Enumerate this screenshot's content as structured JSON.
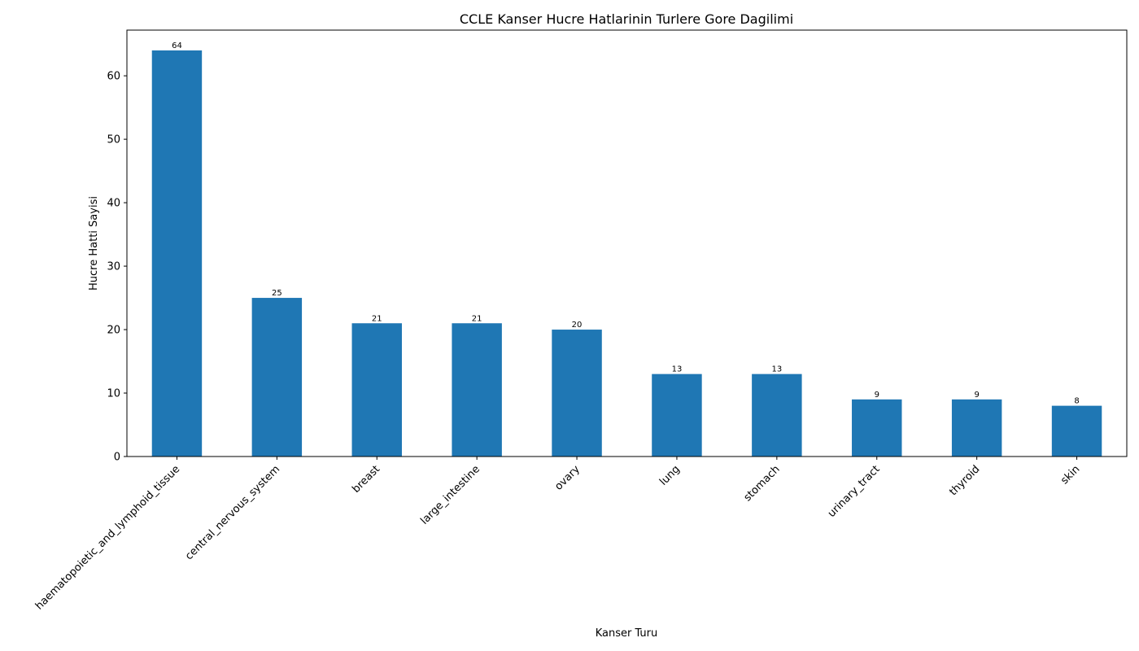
{
  "chart_data": {
    "type": "bar",
    "title": "CCLE Kanser Hucre Hatlarinin Turlere Gore Dagilimi",
    "xlabel": "Kanser Turu",
    "ylabel": "Hucre Hatti Sayisi",
    "categories": [
      "haematopoietic_and_lymphoid_tissue",
      "central_nervous_system",
      "breast",
      "large_intestine",
      "ovary",
      "lung",
      "stomach",
      "urinary_tract",
      "thyroid",
      "skin"
    ],
    "values": [
      64,
      25,
      21,
      21,
      20,
      13,
      13,
      9,
      9,
      8
    ],
    "data_labels": [
      "64",
      "25",
      "21",
      "21",
      "20",
      "13",
      "13",
      "9",
      "9",
      "8"
    ],
    "ylim": [
      0,
      67.2
    ],
    "yticks": [
      0,
      10,
      20,
      30,
      40,
      50,
      60
    ],
    "ytick_labels": [
      "0",
      "10",
      "20",
      "30",
      "40",
      "50",
      "60"
    ],
    "grid": false,
    "bar_color": "#1f77b4"
  }
}
